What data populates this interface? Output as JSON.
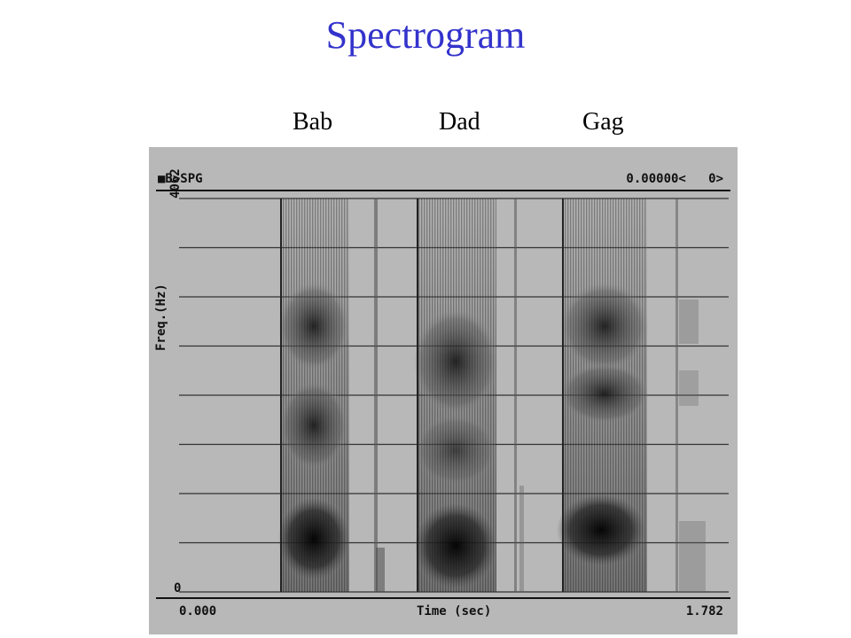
{
  "title": "Spectrogram",
  "words": [
    "Bab",
    "Dad",
    "Gag"
  ],
  "display": {
    "header_left": "■B>SPG",
    "header_right": "0.00000<   0>",
    "y_axis_label": "Freq.(Hz)",
    "y_max": "4062",
    "y_min": "0",
    "x_axis_label": "Time (sec)",
    "x_min": "0.000",
    "x_max": "1.782"
  },
  "colors": {
    "title": "#3333cc",
    "frame": "#b8b8b8",
    "ink": "#111111"
  }
}
